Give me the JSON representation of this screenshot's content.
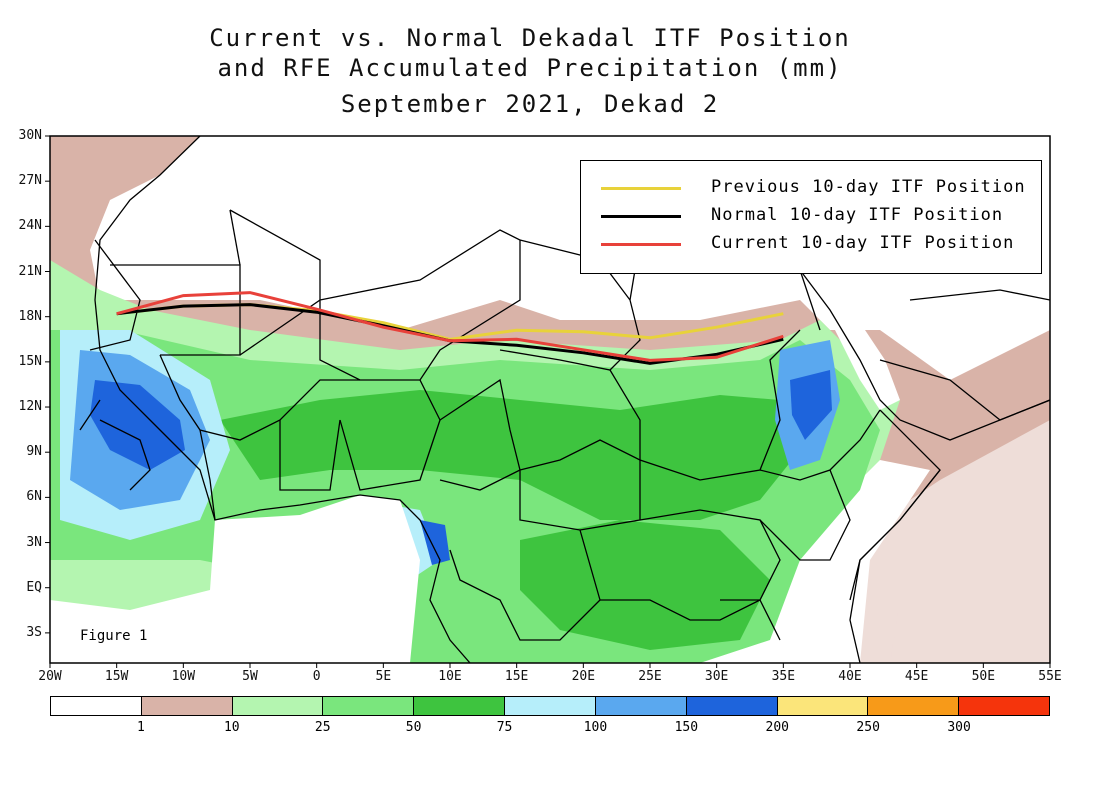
{
  "title": {
    "line1": "Current vs. Normal Dekadal ITF Position",
    "line2": "and RFE Accumulated Precipitation (mm)",
    "line3": "September 2021, Dekad 2"
  },
  "figure_label": "Figure 1",
  "lat_ticks": [
    "30N",
    "27N",
    "24N",
    "21N",
    "18N",
    "15N",
    "12N",
    "9N",
    "6N",
    "3N",
    "EQ",
    "3S"
  ],
  "lon_ticks": [
    "20W",
    "15W",
    "10W",
    "5W",
    "0",
    "5E",
    "10E",
    "15E",
    "20E",
    "25E",
    "30E",
    "35E",
    "40E",
    "45E",
    "50E",
    "55E"
  ],
  "legend": [
    {
      "label": "Previous 10-day ITF Position",
      "color": "#e8d23a"
    },
    {
      "label": "Normal 10-day ITF Position",
      "color": "#000000"
    },
    {
      "label": "Current 10-day ITF Position",
      "color": "#e8413a"
    }
  ],
  "colorbar": {
    "colors": [
      "#ffffff",
      "#d9b3a8",
      "#b4f5b0",
      "#7ae67d",
      "#3ec43f",
      "#b6eefa",
      "#5aa8ef",
      "#1e64dc",
      "#fbe57a",
      "#f79a19",
      "#f5340c"
    ],
    "labels": [
      "1",
      "10",
      "25",
      "50",
      "75",
      "100",
      "150",
      "200",
      "250",
      "300"
    ]
  },
  "map_extent": {
    "lon": [
      -20,
      55
    ],
    "lat": [
      -5,
      30
    ]
  },
  "itf_lines": {
    "previous": [
      [
        -15,
        18.2
      ],
      [
        -10,
        18.7
      ],
      [
        -5,
        18.8
      ],
      [
        0,
        18.4
      ],
      [
        5,
        17.6
      ],
      [
        10,
        16.5
      ],
      [
        15,
        17.1
      ],
      [
        20,
        17.0
      ],
      [
        25,
        16.6
      ],
      [
        30,
        17.3
      ],
      [
        35,
        18.2
      ]
    ],
    "normal": [
      [
        -15,
        18.2
      ],
      [
        -10,
        18.7
      ],
      [
        -5,
        18.8
      ],
      [
        0,
        18.3
      ],
      [
        5,
        17.4
      ],
      [
        10,
        16.4
      ],
      [
        15,
        16.1
      ],
      [
        20,
        15.6
      ],
      [
        25,
        14.9
      ],
      [
        30,
        15.5
      ],
      [
        35,
        16.5
      ]
    ],
    "current": [
      [
        -15,
        18.2
      ],
      [
        -10,
        19.4
      ],
      [
        -5,
        19.6
      ],
      [
        0,
        18.5
      ],
      [
        5,
        17.3
      ],
      [
        10,
        16.4
      ],
      [
        15,
        16.5
      ],
      [
        20,
        15.8
      ],
      [
        25,
        15.1
      ],
      [
        30,
        15.3
      ],
      [
        35,
        16.7
      ]
    ]
  }
}
